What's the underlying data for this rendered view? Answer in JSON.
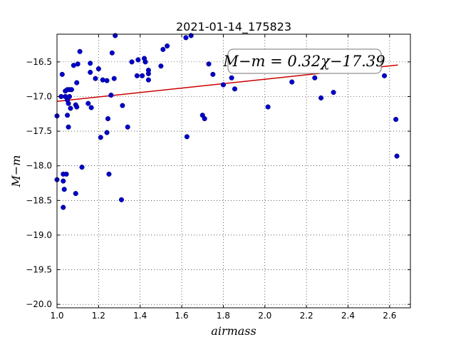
{
  "chart_data": {
    "type": "scatter",
    "title": "2021-01-14_175823",
    "xlabel": "airmass",
    "ylabel": "M−m",
    "xlim": [
      1.0,
      2.7
    ],
    "ylim": [
      -20.05,
      -16.1
    ],
    "grid": true,
    "xticks": [
      1.0,
      1.2,
      1.4,
      1.6,
      1.8,
      2.0,
      2.2,
      2.4,
      2.6
    ],
    "xtick_labels": [
      "1.0",
      "1.2",
      "1.4",
      "1.6",
      "1.8",
      "2.0",
      "2.2",
      "2.4",
      "2.6"
    ],
    "yticks": [
      -16.5,
      -17.0,
      -17.5,
      -18.0,
      -18.5,
      -19.0,
      -19.5,
      -20.0
    ],
    "ytick_labels": [
      "−16.5",
      "−17.0",
      "−17.5",
      "−18.0",
      "−18.5",
      "−19.0",
      "−19.5",
      "−20.0"
    ],
    "annotation": "M−m = 0.32χ−17.39",
    "fit": {
      "slope": 0.32,
      "intercept": -17.39,
      "x_range": [
        1.0,
        2.64
      ],
      "color": "#cc0000"
    },
    "marker_color": "#0000cc",
    "points": [
      [
        1.0,
        -17.28
      ],
      [
        1.0,
        -18.2
      ],
      [
        1.02,
        -17.0
      ],
      [
        1.025,
        -16.68
      ],
      [
        1.03,
        -18.12
      ],
      [
        1.03,
        -18.22
      ],
      [
        1.03,
        -18.6
      ],
      [
        1.035,
        -18.34
      ],
      [
        1.04,
        -16.92
      ],
      [
        1.04,
        -17.0
      ],
      [
        1.045,
        -18.12
      ],
      [
        1.05,
        -17.05
      ],
      [
        1.05,
        -16.9
      ],
      [
        1.05,
        -17.27
      ],
      [
        1.055,
        -17.44
      ],
      [
        1.055,
        -17.1
      ],
      [
        1.06,
        -17.0
      ],
      [
        1.06,
        -16.9
      ],
      [
        1.065,
        -17.17
      ],
      [
        1.07,
        -16.9
      ],
      [
        1.08,
        -16.55
      ],
      [
        1.09,
        -17.12
      ],
      [
        1.09,
        -18.4
      ],
      [
        1.095,
        -17.15
      ],
      [
        1.095,
        -16.8
      ],
      [
        1.1,
        -16.53
      ],
      [
        1.11,
        -16.35
      ],
      [
        1.12,
        -18.02
      ],
      [
        1.15,
        -17.1
      ],
      [
        1.16,
        -16.52
      ],
      [
        1.16,
        -16.65
      ],
      [
        1.165,
        -17.16
      ],
      [
        1.185,
        -16.74
      ],
      [
        1.2,
        -16.6
      ],
      [
        1.21,
        -17.59
      ],
      [
        1.22,
        -16.76
      ],
      [
        1.24,
        -16.77
      ],
      [
        1.24,
        -17.52
      ],
      [
        1.245,
        -17.32
      ],
      [
        1.25,
        -18.12
      ],
      [
        1.26,
        -16.98
      ],
      [
        1.265,
        -16.37
      ],
      [
        1.275,
        -16.74
      ],
      [
        1.28,
        -16.12
      ],
      [
        1.31,
        -18.49
      ],
      [
        1.315,
        -17.13
      ],
      [
        1.34,
        -17.44
      ],
      [
        1.36,
        -16.5
      ],
      [
        1.385,
        -16.7
      ],
      [
        1.39,
        -16.47
      ],
      [
        1.41,
        -16.7
      ],
      [
        1.42,
        -16.45
      ],
      [
        1.425,
        -16.5
      ],
      [
        1.44,
        -16.67
      ],
      [
        1.44,
        -16.62
      ],
      [
        1.44,
        -16.76
      ],
      [
        1.5,
        -16.56
      ],
      [
        1.51,
        -16.32
      ],
      [
        1.53,
        -16.27
      ],
      [
        1.62,
        -16.15
      ],
      [
        1.625,
        -17.58
      ],
      [
        1.645,
        -16.12
      ],
      [
        1.7,
        -17.27
      ],
      [
        1.71,
        -17.32
      ],
      [
        1.73,
        -16.53
      ],
      [
        1.75,
        -16.68
      ],
      [
        1.8,
        -16.83
      ],
      [
        1.84,
        -16.73
      ],
      [
        1.855,
        -16.89
      ],
      [
        2.015,
        -17.15
      ],
      [
        2.13,
        -16.79
      ],
      [
        2.24,
        -16.73
      ],
      [
        2.27,
        -17.02
      ],
      [
        2.33,
        -16.94
      ],
      [
        2.575,
        -16.7
      ],
      [
        2.63,
        -17.33
      ],
      [
        2.635,
        -17.86
      ]
    ]
  }
}
